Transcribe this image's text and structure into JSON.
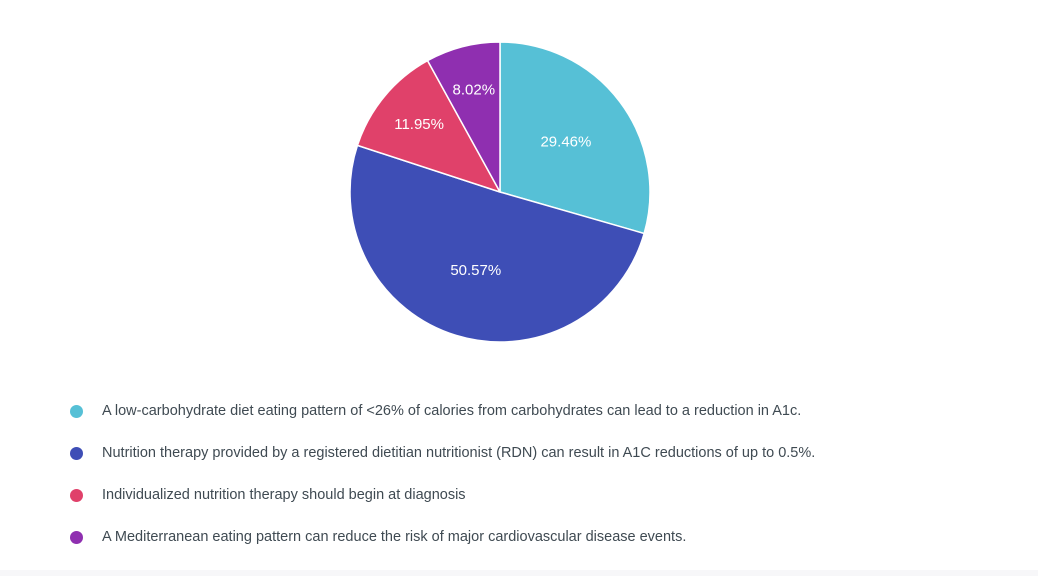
{
  "chart_data": {
    "type": "pie",
    "title": "",
    "slices": [
      {
        "label": "A low-carbohydrate diet eating pattern of <26% of calories from carbohydrates can lead to a reduction in A1c.",
        "value": 29.46,
        "display": "29.46%",
        "color": "#56c0d6"
      },
      {
        "label": "Nutrition therapy provided by a registered dietitian nutritionist (RDN) can result in A1C reductions of up to 0.5%.",
        "value": 50.57,
        "display": "50.57%",
        "color": "#3e4eb6"
      },
      {
        "label": "Individualized nutrition therapy should begin at diagnosis",
        "value": 11.95,
        "display": "11.95%",
        "color": "#e0416a"
      },
      {
        "label": "A Mediterranean eating pattern can reduce the risk of major cardiovascular disease events.",
        "value": 8.02,
        "display": "8.02%",
        "color": "#8f2fb0"
      }
    ],
    "legend_position": "bottom-left",
    "slice_border_color": "#ffffff"
  }
}
